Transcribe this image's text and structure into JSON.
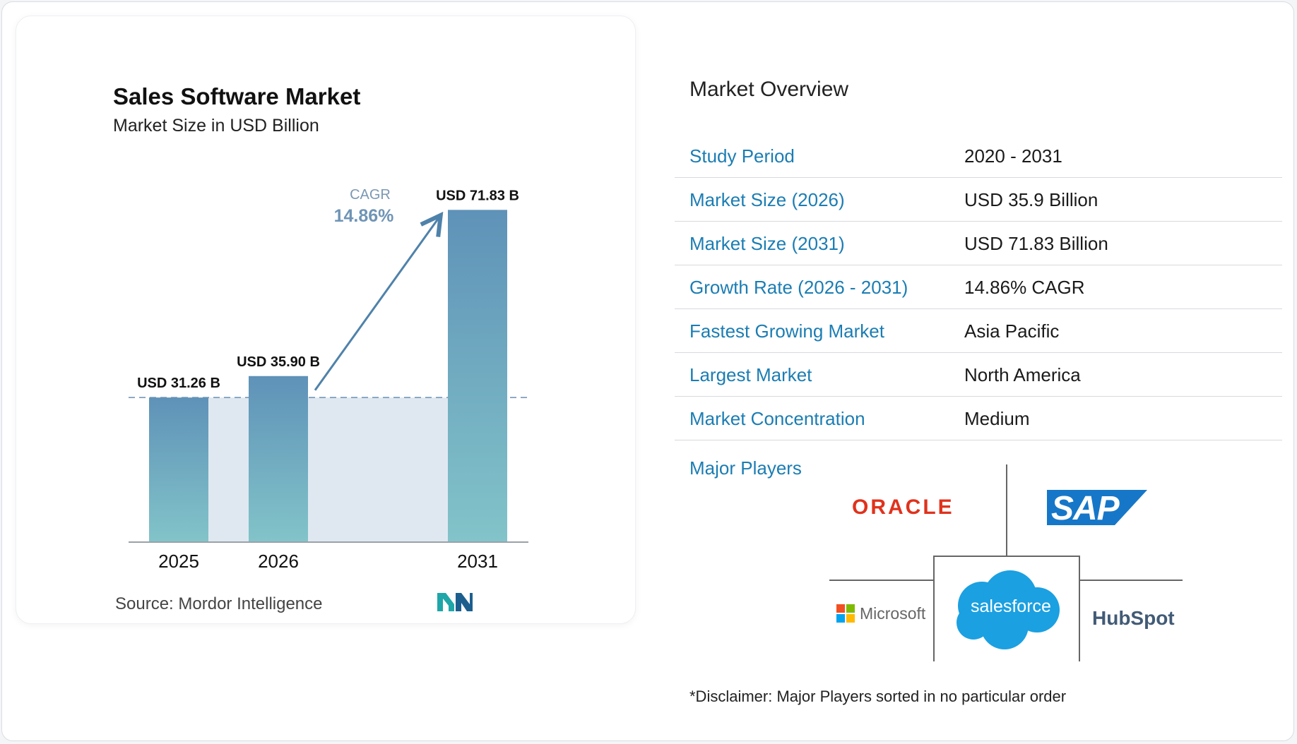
{
  "chart_data": {
    "type": "bar",
    "title": "Sales Software Market",
    "subtitle": "Market Size in USD Billion",
    "categories": [
      "2025",
      "2026",
      "2031"
    ],
    "values": [
      31.26,
      35.9,
      71.83
    ],
    "data_labels": [
      "USD 31.26 B",
      "USD 35.90 B",
      "USD 71.83 B"
    ],
    "cagr_label": "CAGR",
    "cagr_value": "14.86%",
    "baseline_reference_value": 31.26,
    "ylim": [
      0,
      76
    ],
    "grid": false,
    "legend": "none",
    "bar_color_top": "#5f92b8",
    "bar_color_bottom": "#82c4c9",
    "arrow_color": "#4f82aa",
    "band_color": "#dfe8f1"
  },
  "source": {
    "label": "Source:",
    "name": "Mordor Intelligence"
  },
  "overview": {
    "title": "Market Overview",
    "rows": [
      {
        "label": "Study Period",
        "value": "2020 - 2031"
      },
      {
        "label": "Market Size (2026)",
        "value": "USD 35.9 Billion"
      },
      {
        "label": "Market Size (2031)",
        "value": "USD 71.83 Billion"
      },
      {
        "label": "Growth Rate (2026 - 2031)",
        "value": "14.86% CAGR"
      },
      {
        "label": "Fastest Growing Market",
        "value": "Asia Pacific"
      },
      {
        "label": "Largest Market",
        "value": "North America"
      },
      {
        "label": "Market Concentration",
        "value": "Medium"
      }
    ],
    "players_label": "Major Players",
    "players": [
      "ORACLE",
      "SAP",
      "Microsoft",
      "salesforce",
      "HubSpot"
    ],
    "disclaimer": "*Disclaimer: Major Players sorted in no particular order"
  },
  "colors": {
    "accent": "#1b7db3",
    "oracle": "#e0321c",
    "sap": "#1677c8",
    "salesforce": "#1ba0e1",
    "hubspot": "#425b76"
  }
}
